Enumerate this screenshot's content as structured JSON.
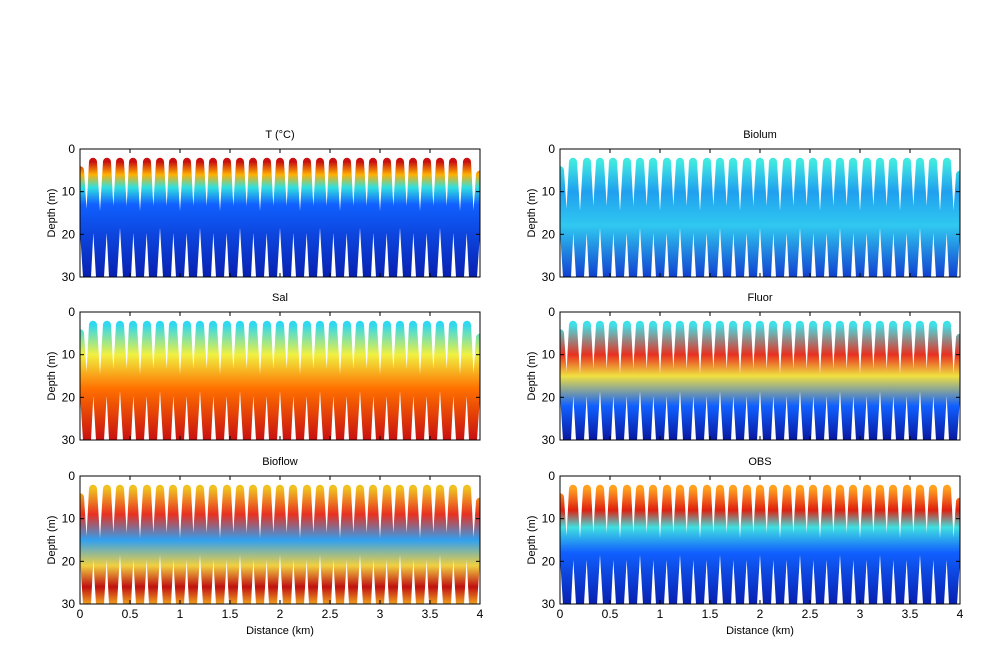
{
  "track": {
    "x": [
      0,
      0.07,
      0.13,
      0.2,
      0.27,
      0.33,
      0.4,
      0.47,
      0.53,
      0.6,
      0.67,
      0.73,
      0.8,
      0.87,
      0.93,
      1,
      1.07,
      1.13,
      1.2,
      1.27,
      1.33,
      1.4,
      1.47,
      1.53,
      1.6,
      1.67,
      1.73,
      1.8,
      1.87,
      1.93,
      2,
      2.07,
      2.13,
      2.2,
      2.27,
      2.33,
      2.4,
      2.47,
      2.53,
      2.6,
      2.67,
      2.73,
      2.8,
      2.87,
      2.93,
      3,
      3.07,
      3.13,
      3.2,
      3.27,
      3.33,
      3.4,
      3.47,
      3.53,
      3.6,
      3.67,
      3.73,
      3.8,
      3.87,
      3.93,
      4
    ],
    "y": [
      5,
      30,
      3,
      30,
      3,
      30,
      3,
      30,
      3,
      30,
      3,
      30,
      3,
      30,
      3,
      30,
      3,
      30,
      3,
      30,
      3,
      30,
      3,
      30,
      3,
      30,
      3,
      30,
      3,
      30,
      3,
      30,
      3,
      30,
      3,
      30,
      3,
      30,
      3,
      30,
      3,
      30,
      3,
      30,
      3,
      30,
      3,
      30,
      3,
      30,
      3,
      30,
      3,
      30,
      3,
      30,
      3,
      30,
      3,
      30,
      6
    ]
  },
  "chart_data": [
    {
      "type": "line",
      "title": "T (°C)",
      "ylabel": "Depth (m)",
      "xlim": [
        0,
        4
      ],
      "ylim": [
        30,
        0
      ],
      "yticks": [
        0,
        10,
        20,
        30
      ],
      "xticks": [
        0,
        0.5,
        1,
        1.5,
        2,
        2.5,
        3,
        3.5,
        4
      ],
      "show_xtick_labels": false,
      "color_stops": [
        {
          "depth": 3,
          "color": "#c81010"
        },
        {
          "depth": 6,
          "color": "#ffb000"
        },
        {
          "depth": 9,
          "color": "#30e0e0"
        },
        {
          "depth": 13,
          "color": "#1060ff"
        },
        {
          "depth": 30,
          "color": "#0820b0"
        }
      ]
    },
    {
      "type": "line",
      "title": "Biolum",
      "ylabel": "Depth (m)",
      "xlim": [
        0,
        4
      ],
      "ylim": [
        30,
        0
      ],
      "yticks": [
        0,
        10,
        20,
        30
      ],
      "xticks": [
        0,
        0.5,
        1,
        1.5,
        2,
        2.5,
        3,
        3.5,
        4
      ],
      "show_xtick_labels": false,
      "color_stops": [
        {
          "depth": 3,
          "color": "#40e8e0"
        },
        {
          "depth": 10,
          "color": "#20a0f0"
        },
        {
          "depth": 18,
          "color": "#30c8f0"
        },
        {
          "depth": 30,
          "color": "#1040d0"
        }
      ]
    },
    {
      "type": "line",
      "title": "Sal",
      "ylabel": "Depth (m)",
      "xlim": [
        0,
        4
      ],
      "ylim": [
        30,
        0
      ],
      "yticks": [
        0,
        10,
        20,
        30
      ],
      "xticks": [
        0,
        0.5,
        1,
        1.5,
        2,
        2.5,
        3,
        3.5,
        4
      ],
      "show_xtick_labels": false,
      "color_stops": [
        {
          "depth": 3,
          "color": "#30d8f0"
        },
        {
          "depth": 10,
          "color": "#f0f040"
        },
        {
          "depth": 18,
          "color": "#ff7000"
        },
        {
          "depth": 30,
          "color": "#c81010"
        }
      ]
    },
    {
      "type": "line",
      "title": "Fluor",
      "ylabel": "Depth (m)",
      "xlim": [
        0,
        4
      ],
      "ylim": [
        30,
        0
      ],
      "yticks": [
        0,
        10,
        20,
        30
      ],
      "xticks": [
        0,
        0.5,
        1,
        1.5,
        2,
        2.5,
        3,
        3.5,
        4
      ],
      "show_xtick_labels": false,
      "color_stops": [
        {
          "depth": 3,
          "color": "#40e0e8"
        },
        {
          "depth": 10,
          "color": "#e83020"
        },
        {
          "depth": 15,
          "color": "#f0e040"
        },
        {
          "depth": 22,
          "color": "#1060ff"
        },
        {
          "depth": 30,
          "color": "#0818a0"
        }
      ]
    },
    {
      "type": "line",
      "title": "Bioflow",
      "ylabel": "Depth (m)",
      "xlabel": "Distance (km)",
      "xlim": [
        0,
        4
      ],
      "ylim": [
        30,
        0
      ],
      "yticks": [
        0,
        10,
        20,
        30
      ],
      "xticks": [
        0,
        0.5,
        1,
        1.5,
        2,
        2.5,
        3,
        3.5,
        4
      ],
      "show_xtick_labels": true,
      "color_stops": [
        {
          "depth": 3,
          "color": "#f0c020"
        },
        {
          "depth": 9,
          "color": "#e83020"
        },
        {
          "depth": 15,
          "color": "#30a0f0"
        },
        {
          "depth": 21,
          "color": "#f0d040"
        },
        {
          "depth": 26,
          "color": "#c01010"
        },
        {
          "depth": 30,
          "color": "#f0a020"
        }
      ]
    },
    {
      "type": "line",
      "title": "OBS",
      "ylabel": "Depth (m)",
      "xlabel": "Distance (km)",
      "xlim": [
        0,
        4
      ],
      "ylim": [
        30,
        0
      ],
      "yticks": [
        0,
        10,
        20,
        30
      ],
      "xticks": [
        0,
        0.5,
        1,
        1.5,
        2,
        2.5,
        3,
        3.5,
        4
      ],
      "show_xtick_labels": true,
      "color_stops": [
        {
          "depth": 3,
          "color": "#ffa020"
        },
        {
          "depth": 8,
          "color": "#e02010"
        },
        {
          "depth": 12,
          "color": "#40e0e0"
        },
        {
          "depth": 18,
          "color": "#1060ff"
        },
        {
          "depth": 30,
          "color": "#0820b0"
        }
      ]
    }
  ]
}
